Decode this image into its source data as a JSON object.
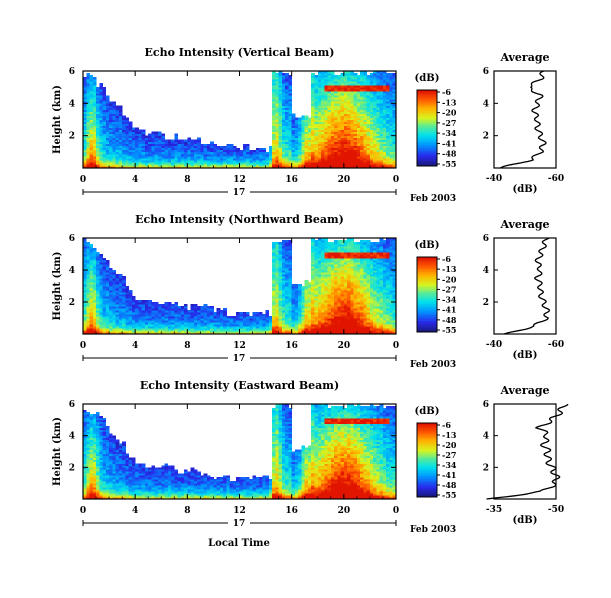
{
  "chart_data": [
    {
      "type": "heatmap",
      "title": "Echo Intensity (Vertical Beam)",
      "ylabel": "Height (km)",
      "xticks": [
        "0",
        "4",
        "8",
        "12",
        "16",
        "20",
        "0"
      ],
      "yticks": [
        "6",
        "4",
        "2"
      ],
      "xlim": [
        0,
        24
      ],
      "ylim": [
        0,
        6
      ],
      "day_label": "17",
      "date_label": "Feb 2003",
      "colorbar": {
        "unit": "(dB)",
        "ticks": [
          "-6",
          "-13",
          "-20",
          "-27",
          "-34",
          "-41",
          "-48",
          "-55"
        ]
      },
      "average": {
        "title": "Average",
        "xlabel": "(dB)",
        "xticks": [
          "-40",
          "-60"
        ],
        "yticks": [
          "6",
          "4",
          "2"
        ],
        "heights": [
          0.0,
          0.5,
          1.0,
          1.5,
          2.0,
          2.5,
          3.0,
          3.5,
          4.0,
          4.5,
          5.0,
          5.5,
          6.0
        ],
        "db": [
          -42,
          -52,
          -55,
          -56,
          -55,
          -54,
          -54,
          -53,
          -54,
          -55,
          -51,
          -55,
          -56
        ]
      }
    },
    {
      "type": "heatmap",
      "title": "Echo Intensity (Northward Beam)",
      "ylabel": "Height (km)",
      "xticks": [
        "0",
        "4",
        "8",
        "12",
        "16",
        "20",
        "0"
      ],
      "yticks": [
        "6",
        "4",
        "2"
      ],
      "xlim": [
        0,
        24
      ],
      "ylim": [
        0,
        6
      ],
      "day_label": "17",
      "date_label": "Feb 2003",
      "colorbar": {
        "unit": "(dB)",
        "ticks": [
          "-6",
          "-13",
          "-20",
          "-27",
          "-34",
          "-41",
          "-48",
          "-55"
        ]
      },
      "average": {
        "title": "Average",
        "xlabel": "(dB)",
        "xticks": [
          "-40",
          "-60"
        ],
        "yticks": [
          "6",
          "4",
          "2"
        ],
        "heights": [
          0.0,
          0.5,
          1.0,
          1.5,
          2.0,
          2.5,
          3.0,
          3.5,
          4.0,
          4.5,
          5.0,
          5.5,
          6.0
        ],
        "db": [
          -44,
          -53,
          -57,
          -57,
          -56,
          -55,
          -55,
          -54,
          -55,
          -54,
          -55,
          -56,
          -57
        ]
      }
    },
    {
      "type": "heatmap",
      "title": "Echo Intensity (Eastward Beam)",
      "ylabel": "Height (km)",
      "xlabel": "Local Time",
      "xticks": [
        "0",
        "4",
        "8",
        "12",
        "16",
        "20",
        "0"
      ],
      "yticks": [
        "6",
        "4",
        "2"
      ],
      "xlim": [
        0,
        24
      ],
      "ylim": [
        0,
        6
      ],
      "day_label": "17",
      "date_label": "Feb 2003",
      "colorbar": {
        "unit": "(dB)",
        "ticks": [
          "-6",
          "-13",
          "-20",
          "-27",
          "-34",
          "-41",
          "-48",
          "-55"
        ]
      },
      "average": {
        "title": "Average",
        "xlabel": "(dB)",
        "xticks": [
          "-35",
          "-50"
        ],
        "yticks": [
          "6",
          "4",
          "2"
        ],
        "heights": [
          0.0,
          0.5,
          1.0,
          1.5,
          2.0,
          2.5,
          3.0,
          3.5,
          4.0,
          4.5,
          5.0,
          5.5,
          6.0
        ],
        "db": [
          -34,
          -47,
          -50,
          -50,
          -49,
          -48,
          -48,
          -47,
          -48,
          -46,
          -49,
          -51,
          -52
        ]
      }
    }
  ]
}
